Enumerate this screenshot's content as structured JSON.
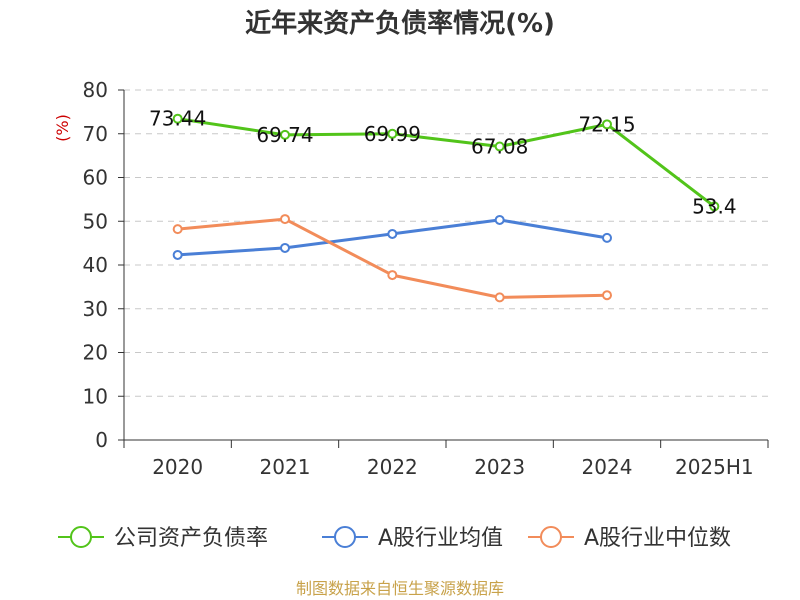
{
  "chart_data": {
    "type": "line",
    "title": "近年来资产负债率情况(%)",
    "ylabel": "(%)",
    "ylim": [
      0,
      80
    ],
    "yticks": [
      0,
      10,
      20,
      30,
      40,
      50,
      60,
      70,
      80
    ],
    "categories": [
      "2020",
      "2021",
      "2022",
      "2023",
      "2024",
      "2025H1"
    ],
    "grid": true,
    "legend_position": "bottom",
    "series": [
      {
        "name": "公司资产负债率",
        "color": "#52c41a",
        "values": [
          73.44,
          69.74,
          69.99,
          67.08,
          72.15,
          53.4
        ],
        "labels": [
          "73.44",
          "69.74",
          "69.99",
          "67.08",
          "72.15",
          "53.4"
        ]
      },
      {
        "name": "A股行业均值",
        "color": "#4a7fd6",
        "values": [
          42.3,
          43.9,
          47.1,
          50.3,
          46.2,
          null
        ]
      },
      {
        "name": "A股行业中位数",
        "color": "#f28c5a",
        "values": [
          48.2,
          50.5,
          37.7,
          32.6,
          33.1,
          null
        ]
      }
    ]
  },
  "source": "制图数据来自恒生聚源数据库"
}
